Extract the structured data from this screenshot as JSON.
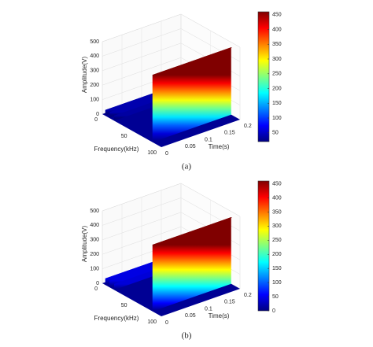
{
  "chart_data": [
    {
      "type": "surface",
      "panel_label": "(a)",
      "x_label": "Frequency(kHz)",
      "y_label": "Time(s)",
      "z_label": "Amplitude(V)",
      "xlim": [
        0,
        100
      ],
      "xticks": [
        0,
        50,
        100
      ],
      "ylim": [
        0,
        0.2
      ],
      "yticks": [
        0,
        0.05,
        0.1,
        0.15,
        0.2
      ],
      "zlim": [
        0,
        500
      ],
      "zticks": [
        0,
        100,
        200,
        300,
        400,
        500
      ],
      "clim": [
        20,
        460
      ],
      "cticks": [
        50,
        100,
        150,
        200,
        250,
        300,
        350,
        400,
        450
      ],
      "x": [
        5,
        12,
        20,
        85
      ],
      "values": [
        40,
        40,
        35,
        465
      ],
      "grid": true,
      "colormap": "jet"
    },
    {
      "type": "surface",
      "panel_label": "(b)",
      "x_label": "Frequency(kHz)",
      "y_label": "Time(s)",
      "z_label": "Amplitude(V)",
      "xlim": [
        0,
        100
      ],
      "xticks": [
        0,
        50,
        100
      ],
      "ylim": [
        0,
        0.2
      ],
      "yticks": [
        0,
        0.05,
        0.1,
        0.15,
        0.2
      ],
      "zlim": [
        0,
        500
      ],
      "zticks": [
        0,
        100,
        200,
        300,
        400,
        500
      ],
      "clim": [
        0,
        460
      ],
      "cticks": [
        0,
        50,
        100,
        150,
        200,
        250,
        300,
        350,
        400,
        450
      ],
      "x": [
        5,
        12,
        20,
        85
      ],
      "values": [
        45,
        45,
        40,
        460
      ],
      "grid": true,
      "colormap": "jet"
    }
  ]
}
